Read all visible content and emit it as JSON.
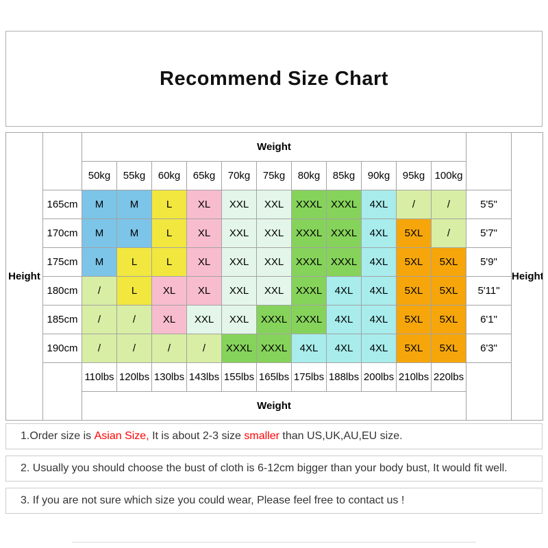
{
  "accent_red": "#ff0000",
  "chart_data": {
    "type": "table",
    "title": "Recommend Size Chart",
    "weight_header": "Weight",
    "height_header": "Height",
    "columns_kg": [
      "50kg",
      "55kg",
      "60kg",
      "65kg",
      "70kg",
      "75kg",
      "80kg",
      "85kg",
      "90kg",
      "95kg",
      "100kg"
    ],
    "columns_lbs": [
      "110lbs",
      "120lbs",
      "130lbs",
      "143lbs",
      "155lbs",
      "165lbs",
      "175lbs",
      "188lbs",
      "200lbs",
      "210lbs",
      "220lbs"
    ],
    "palette": {
      "blue": "#7cc4e8",
      "yellow": "#f2e73e",
      "pink": "#f8bccf",
      "mint": "#e3f6e9",
      "green": "#86d35b",
      "cyan": "#a8ecec",
      "lime": "#d8eea4",
      "orange": "#f6a60b"
    },
    "rows": [
      {
        "height_cm": "165cm",
        "height_ft": "5'5\"",
        "sizes": [
          "M",
          "M",
          "L",
          "XL",
          "XXL",
          "XXL",
          "XXXL",
          "XXXL",
          "4XL",
          "/",
          "/"
        ],
        "colors": [
          "blue",
          "blue",
          "yellow",
          "pink",
          "mint",
          "mint",
          "green",
          "green",
          "cyan",
          "lime",
          "lime"
        ]
      },
      {
        "height_cm": "170cm",
        "height_ft": "5'7\"",
        "sizes": [
          "M",
          "M",
          "L",
          "XL",
          "XXL",
          "XXL",
          "XXXL",
          "XXXL",
          "4XL",
          "5XL",
          "/"
        ],
        "colors": [
          "blue",
          "blue",
          "yellow",
          "pink",
          "mint",
          "mint",
          "green",
          "green",
          "cyan",
          "orange",
          "lime"
        ]
      },
      {
        "height_cm": "175cm",
        "height_ft": "5'9\"",
        "sizes": [
          "M",
          "L",
          "L",
          "XL",
          "XXL",
          "XXL",
          "XXXL",
          "XXXL",
          "4XL",
          "5XL",
          "5XL"
        ],
        "colors": [
          "blue",
          "yellow",
          "yellow",
          "pink",
          "mint",
          "mint",
          "green",
          "green",
          "cyan",
          "orange",
          "orange"
        ]
      },
      {
        "height_cm": "180cm",
        "height_ft": "5'11\"",
        "sizes": [
          "/",
          "L",
          "XL",
          "XL",
          "XXL",
          "XXL",
          "XXXL",
          "4XL",
          "4XL",
          "5XL",
          "5XL"
        ],
        "colors": [
          "lime",
          "yellow",
          "pink",
          "pink",
          "mint",
          "mint",
          "green",
          "cyan",
          "cyan",
          "orange",
          "orange"
        ]
      },
      {
        "height_cm": "185cm",
        "height_ft": "6'1\"",
        "sizes": [
          "/",
          "/",
          "XL",
          "XXL",
          "XXL",
          "XXXL",
          "XXXL",
          "4XL",
          "4XL",
          "5XL",
          "5XL"
        ],
        "colors": [
          "lime",
          "lime",
          "pink",
          "mint",
          "mint",
          "green",
          "green",
          "cyan",
          "cyan",
          "orange",
          "orange"
        ]
      },
      {
        "height_cm": "190cm",
        "height_ft": "6'3\"",
        "sizes": [
          "/",
          "/",
          "/",
          "/",
          "XXXL",
          "XXXL",
          "4XL",
          "4XL",
          "4XL",
          "5XL",
          "5XL"
        ],
        "colors": [
          "lime",
          "lime",
          "lime",
          "lime",
          "green",
          "green",
          "cyan",
          "cyan",
          "cyan",
          "orange",
          "orange"
        ]
      }
    ]
  },
  "notes": [
    {
      "segments": [
        {
          "text": "1.Order size is ",
          "red": false
        },
        {
          "text": "Asian Size,",
          "red": true
        },
        {
          "text": " It is about 2-3 size ",
          "red": false
        },
        {
          "text": "smaller",
          "red": true
        },
        {
          "text": " than US,UK,AU,EU size.",
          "red": false
        }
      ]
    },
    {
      "segments": [
        {
          "text": "2. Usually you should choose the bust of cloth is 6-12cm bigger than your body bust, It would fit well.",
          "red": false
        }
      ]
    },
    {
      "segments": [
        {
          "text": "3. If you are not sure which size you could wear, Please feel free to contact us !",
          "red": false
        }
      ]
    }
  ]
}
